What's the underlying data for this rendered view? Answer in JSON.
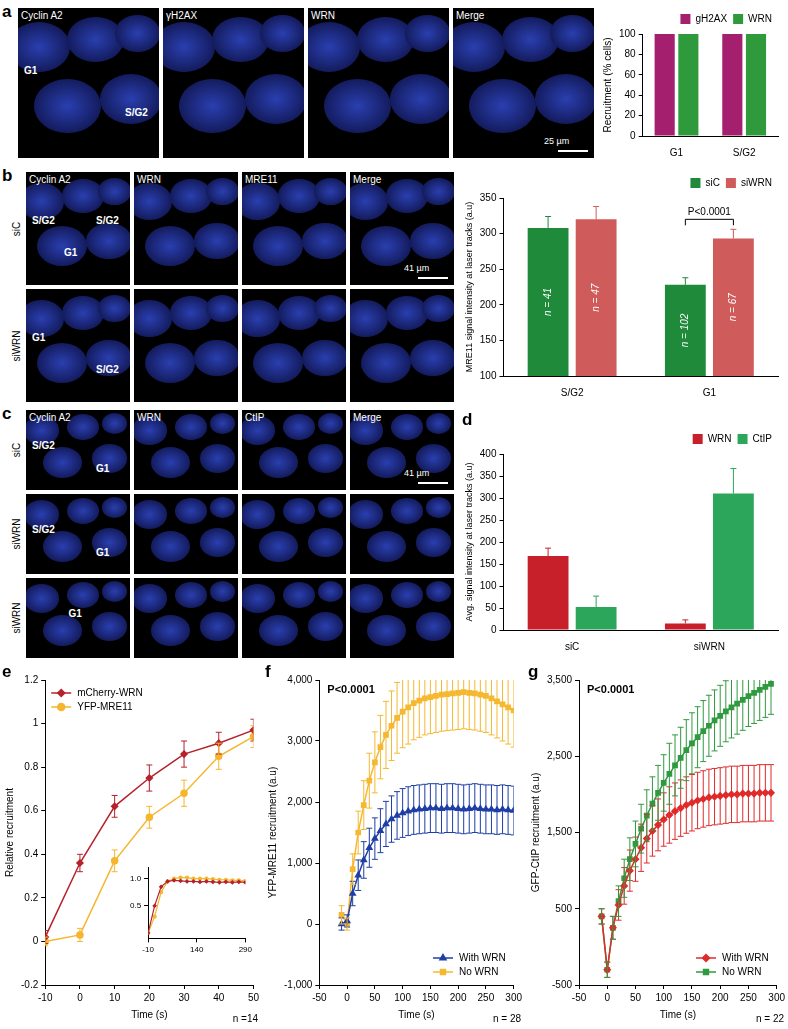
{
  "chart_data": [
    {
      "type": "bar",
      "categories": [
        "G1",
        "S/G2"
      ],
      "y_label": "Recruitment (% cells)",
      "series": [
        {
          "name": "gH2AX",
          "color": "#a4206f",
          "values": [
            100,
            100
          ]
        },
        {
          "name": "WRN",
          "color": "#2f9a3c",
          "values": [
            100,
            100
          ]
        }
      ],
      "ylim": [
        0,
        100
      ],
      "yticks": [
        0,
        20,
        40,
        60,
        80,
        100
      ],
      "grid": false,
      "legend": "top"
    },
    {
      "type": "bar",
      "categories": [
        "S/G2",
        "G1"
      ],
      "y_label": "MRE11 signal intensity at laser tracks (a.u)",
      "series": [
        {
          "name": "siC",
          "color": "#1e8a3a",
          "values": [
            308,
            228
          ],
          "errors": [
            16,
            10
          ],
          "n_labels": [
            "n = 41",
            "n = 102"
          ]
        },
        {
          "name": "siWRN",
          "color": "#cf5b5b",
          "values": [
            320,
            293
          ],
          "errors": [
            18,
            13
          ],
          "n_labels": [
            "n = 47",
            "n = 67"
          ]
        }
      ],
      "p_value": {
        "text": "P<0.0001",
        "category": "G1"
      },
      "ylim": [
        100,
        350
      ],
      "yticks": [
        100,
        150,
        200,
        250,
        300,
        350
      ],
      "grid": false,
      "legend": "top"
    },
    {
      "panel": "d",
      "type": "bar",
      "categories": [
        "siC",
        "siWRN"
      ],
      "y_label": "Avg. signal intensity at laser tracks (a.u)",
      "series": [
        {
          "name": "WRN",
          "color": "#c8202a",
          "values": [
            168,
            15
          ],
          "errors": [
            18,
            8
          ]
        },
        {
          "name": "CtIP",
          "color": "#2ca65a",
          "values": [
            52,
            310
          ],
          "errors": [
            25,
            57
          ]
        }
      ],
      "ylim": [
        0,
        400
      ],
      "yticks": [
        0,
        50,
        100,
        150,
        200,
        250,
        300,
        350,
        400
      ],
      "grid": false,
      "legend": "top"
    },
    {
      "panel": "e",
      "type": "line",
      "x": [
        -10,
        0,
        10,
        20,
        30,
        40,
        50
      ],
      "x_label": "Time (s)",
      "y_label": "Relative recruitment",
      "series": [
        {
          "name": "mCherry-WRN",
          "color": "#b5222c",
          "marker": "diamond",
          "values": [
            0.02,
            0.36,
            0.62,
            0.75,
            0.86,
            0.91,
            0.97
          ],
          "errors": [
            0.03,
            0.04,
            0.05,
            0.06,
            0.06,
            0.05,
            0.05
          ]
        },
        {
          "name": "YFP-MRE11",
          "color": "#f5b62e",
          "marker": "circle",
          "values": [
            0.0,
            0.03,
            0.37,
            0.57,
            0.68,
            0.85,
            0.94
          ],
          "errors": [
            0.02,
            0.03,
            0.05,
            0.05,
            0.06,
            0.06,
            0.05
          ]
        }
      ],
      "n_label": "n =14",
      "xlim": [
        -10,
        50
      ],
      "xticks": [
        -10,
        0,
        10,
        20,
        30,
        40,
        50
      ],
      "ylim": [
        -0.2,
        1.2
      ],
      "yticks": [
        -0.2,
        0,
        0.2,
        0.4,
        0.6,
        0.8,
        1,
        1.2
      ],
      "grid": false,
      "legend": "top-left",
      "inset": {
        "type": "line",
        "x": [
          -10,
          10,
          30,
          50,
          70,
          90,
          110,
          130,
          150,
          170,
          190,
          210,
          230,
          250,
          270,
          290
        ],
        "series": [
          {
            "name": "mCherry-WRN",
            "color": "#b5222c",
            "marker": "diamond",
            "values": [
              0,
              0.5,
              0.85,
              0.95,
              0.97,
              0.96,
              0.95,
              0.95,
              0.94,
              0.95,
              0.94,
              0.93,
              0.94,
              0.93,
              0.94,
              0.93
            ]
          },
          {
            "name": "YFP-MRE11",
            "color": "#f5b62e",
            "marker": "circle",
            "values": [
              0,
              0.3,
              0.75,
              0.95,
              1.0,
              1.02,
              1.02,
              1.0,
              1.0,
              1.0,
              0.99,
              0.98,
              0.98,
              0.97,
              0.97,
              0.96
            ]
          }
        ],
        "xlim": [
          -10,
          290
        ],
        "xticks": [
          -10,
          140,
          290
        ],
        "ylim": [
          -0.1,
          1.2
        ],
        "yticks": [
          0.5,
          {
            "value": 1,
            "label": "1.0"
          }
        ],
        "grid": false
      }
    },
    {
      "panel": "f",
      "type": "line",
      "x": [
        -10,
        0,
        10,
        20,
        30,
        40,
        50,
        60,
        70,
        80,
        90,
        100,
        110,
        120,
        130,
        140,
        150,
        160,
        170,
        180,
        190,
        200,
        210,
        220,
        230,
        240,
        250,
        260,
        270,
        280,
        290,
        300
      ],
      "x_label": "Time (s)",
      "y_label": "YFP-MRE11 recruitment (a.u)",
      "series": [
        {
          "name": "With WRN",
          "color": "#1f3fa6",
          "marker": "triangle",
          "values": [
            0,
            50,
            500,
            800,
            1050,
            1250,
            1400,
            1530,
            1640,
            1720,
            1780,
            1820,
            1850,
            1870,
            1880,
            1890,
            1900,
            1900,
            1890,
            1900,
            1900,
            1890,
            1880,
            1890,
            1900,
            1890,
            1880,
            1880,
            1870,
            1880,
            1870,
            1860
          ],
          "errors": [
            100,
            100,
            200,
            250,
            300,
            320,
            340,
            360,
            370,
            380,
            390,
            400,
            400,
            400,
            400,
            400,
            400,
            400,
            400,
            400,
            400,
            400,
            400,
            400,
            400,
            400,
            400,
            400,
            400,
            400,
            400,
            400
          ]
        },
        {
          "name": "No WRN",
          "color": "#f5b830",
          "marker": "square",
          "values": [
            150,
            0,
            900,
            1500,
            1950,
            2350,
            2650,
            2900,
            3100,
            3250,
            3380,
            3480,
            3550,
            3620,
            3660,
            3700,
            3720,
            3740,
            3760,
            3770,
            3780,
            3790,
            3800,
            3790,
            3780,
            3760,
            3740,
            3700,
            3650,
            3600,
            3550,
            3500
          ],
          "errors": [
            150,
            100,
            250,
            350,
            400,
            450,
            500,
            520,
            550,
            570,
            580,
            590,
            600,
            600,
            600,
            600,
            600,
            600,
            600,
            600,
            600,
            600,
            600,
            600,
            600,
            600,
            600,
            600,
            600,
            600,
            600,
            600
          ]
        }
      ],
      "p_value": "P<0.0001",
      "n_label": "n = 28",
      "xlim": [
        -50,
        300
      ],
      "xticks": [
        -50,
        0,
        50,
        100,
        150,
        200,
        250,
        300
      ],
      "ylim": [
        -1000,
        4000
      ],
      "yticks": [
        {
          "value": -1000,
          "label": "-1,000"
        },
        0,
        {
          "value": 1000,
          "label": "1,000"
        },
        {
          "value": 2000,
          "label": "2,000"
        },
        {
          "value": 3000,
          "label": "3,000"
        },
        {
          "value": 4000,
          "label": "4,000"
        }
      ],
      "grid": false,
      "legend": "bottom-right"
    },
    {
      "panel": "g",
      "type": "line",
      "x": [
        -10,
        0,
        10,
        20,
        30,
        40,
        50,
        60,
        70,
        80,
        90,
        100,
        110,
        120,
        130,
        140,
        150,
        160,
        170,
        180,
        190,
        200,
        210,
        220,
        230,
        240,
        250,
        260,
        270,
        280,
        290
      ],
      "x_label": "Time (s)",
      "y_label": "GFP-CtIP recruitment (a.u)",
      "series": [
        {
          "name": "With WRN",
          "color": "#e02b2b",
          "marker": "diamond",
          "values": [
            400,
            -300,
            250,
            550,
            800,
            1000,
            1150,
            1300,
            1420,
            1520,
            1600,
            1670,
            1730,
            1780,
            1820,
            1860,
            1890,
            1920,
            1940,
            1960,
            1970,
            1980,
            1990,
            2000,
            2000,
            2010,
            2010,
            2010,
            2020,
            2020,
            2020
          ],
          "errors": [
            100,
            100,
            150,
            200,
            240,
            270,
            290,
            310,
            320,
            330,
            340,
            350,
            370,
            370,
            370,
            370,
            370,
            370,
            370,
            370,
            370,
            370,
            370,
            370,
            370,
            370,
            370,
            370,
            370,
            370,
            370
          ]
        },
        {
          "name": "No WRN",
          "color": "#2f9a3f",
          "marker": "square",
          "values": [
            400,
            -300,
            250,
            600,
            900,
            1150,
            1350,
            1550,
            1720,
            1880,
            2020,
            2150,
            2270,
            2380,
            2480,
            2580,
            2670,
            2750,
            2830,
            2900,
            2970,
            3030,
            3090,
            3140,
            3190,
            3240,
            3290,
            3330,
            3370,
            3410,
            3450
          ],
          "errors": [
            100,
            100,
            150,
            200,
            250,
            280,
            300,
            320,
            340,
            350,
            360,
            370,
            400,
            400,
            400,
            400,
            400,
            400,
            400,
            400,
            400,
            400,
            400,
            400,
            400,
            400,
            400,
            400,
            400,
            400,
            400
          ]
        }
      ],
      "p_value": "P<0.0001",
      "n_label": "n = 22",
      "xlim": [
        -50,
        300
      ],
      "xticks": [
        -50,
        0,
        50,
        100,
        150,
        200,
        250,
        300
      ],
      "ylim": [
        -500,
        3500
      ],
      "yticks": [
        -500,
        500,
        {
          "value": 1500,
          "label": "1,500"
        },
        {
          "value": 2500,
          "label": "2,500"
        },
        {
          "value": 3500,
          "label": "3,500"
        }
      ],
      "grid": false,
      "legend": "bottom-right"
    }
  ],
  "image_panels": [
    {
      "panel": "a",
      "columns": [
        "Cyclin A2",
        "γH2AX",
        "WRN",
        "Merge"
      ],
      "rows": [
        {
          "cell_labels": [
            "G1",
            "S/G2"
          ]
        }
      ],
      "scale_bar": "25 µm"
    },
    {
      "panel": "b",
      "columns": [
        "Cyclin A2",
        "WRN",
        "MRE11",
        "Merge"
      ],
      "rows": [
        {
          "name": "siC",
          "cell_labels": [
            "S/G2",
            "G1",
            "S/G2"
          ]
        },
        {
          "name": "siWRN",
          "cell_labels": [
            "G1",
            "S/G2"
          ]
        }
      ],
      "scale_bar": "41 µm"
    },
    {
      "panel": "c",
      "columns": [
        "Cyclin A2",
        "WRN",
        "CtIP",
        "Merge"
      ],
      "rows": [
        {
          "name": "siC",
          "cell_labels": [
            "S/G2",
            "G1"
          ]
        },
        {
          "name": "siWRN",
          "cell_labels": [
            "S/G2",
            "G1"
          ]
        },
        {
          "name": "siWRN",
          "cell_labels": [
            "G1"
          ]
        }
      ],
      "scale_bar": "41 µm"
    }
  ]
}
